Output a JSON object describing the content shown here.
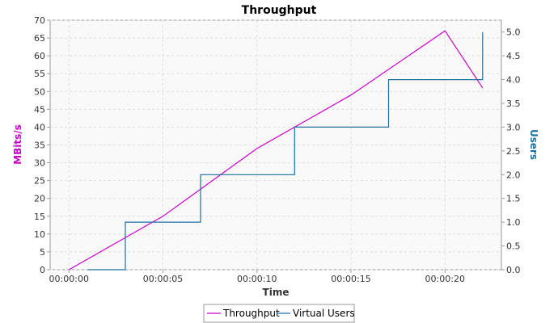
{
  "chart_data": {
    "type": "line",
    "title": "Throughput",
    "xlabel": "Time",
    "ylabel_left": "MBits/s",
    "ylabel_right": "Users",
    "x_ticks": [
      "00:00:00",
      "00:00:05",
      "00:00:10",
      "00:00:15",
      "00:00:20"
    ],
    "x_tick_seconds": [
      0,
      5,
      10,
      15,
      20
    ],
    "xlim_seconds": [
      -1,
      23
    ],
    "ylim_left": [
      0,
      70
    ],
    "y_ticks_left": [
      "0",
      "5",
      "10",
      "15",
      "20",
      "25",
      "30",
      "35",
      "40",
      "45",
      "50",
      "55",
      "60",
      "65",
      "70"
    ],
    "ylim_right": [
      0,
      5.25
    ],
    "y_ticks_right": [
      "0.0",
      "0.5",
      "1.0",
      "1.5",
      "2.0",
      "2.5",
      "3.0",
      "3.5",
      "4.0",
      "4.5",
      "5.0"
    ],
    "grid": true,
    "legend_position": "bottom",
    "series": [
      {
        "name": "Throughput",
        "axis": "left",
        "color": "#cc00cc",
        "step": false,
        "x_seconds": [
          0,
          5,
          10,
          15,
          20,
          22
        ],
        "values": [
          0,
          15,
          34,
          49,
          67,
          51
        ]
      },
      {
        "name": "Virtual Users",
        "axis": "right",
        "color": "#1f6fa3",
        "step": true,
        "x_seconds": [
          1,
          3,
          7,
          12,
          17,
          22
        ],
        "values": [
          0,
          1,
          2,
          3,
          4,
          5
        ]
      }
    ],
    "colors": {
      "left_axis_title": "#cc00cc",
      "right_axis_title": "#1f6fa3",
      "plot_background": "#f9f9f9",
      "grid": "#dddddd"
    }
  }
}
